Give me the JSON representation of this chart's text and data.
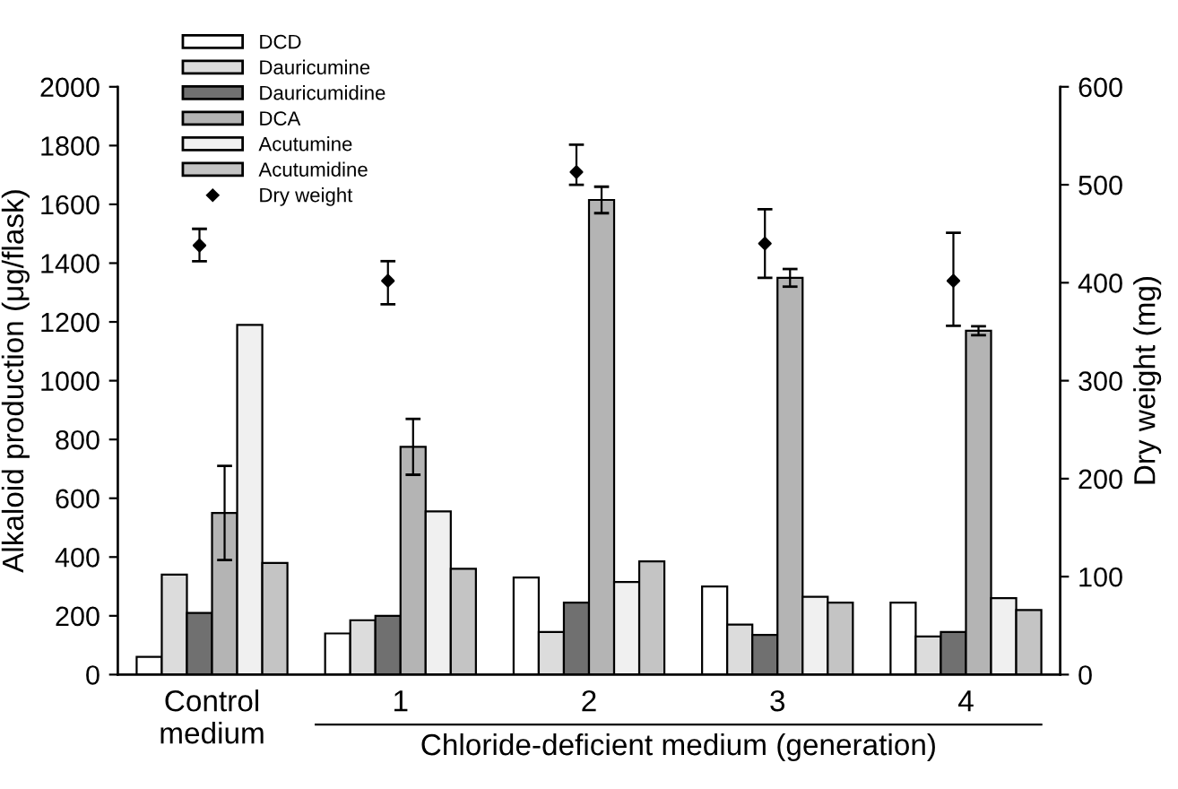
{
  "chart_data": {
    "type": "bar",
    "categories": [
      "Control\nmedium",
      "1",
      "2",
      "3",
      "4"
    ],
    "xlabel": "Chloride-deficient medium (generation)",
    "ylabel": "Alkaloid production (μg/flask)",
    "y2label": "Dry weight (mg)",
    "ylim": [
      0,
      2000
    ],
    "yticks": [
      0,
      200,
      400,
      600,
      800,
      1000,
      1200,
      1400,
      1600,
      1800,
      2000
    ],
    "y2lim": [
      0,
      600
    ],
    "y2ticks": [
      0,
      100,
      200,
      300,
      400,
      500,
      600
    ],
    "legend": "top left",
    "grid": false,
    "series": [
      {
        "name": "DCD",
        "color": "#ffffff",
        "values": [
          60,
          140,
          330,
          300,
          245
        ]
      },
      {
        "name": "Dauricumine",
        "color": "#dcdcdc",
        "values": [
          340,
          185,
          145,
          170,
          130
        ]
      },
      {
        "name": "Dauricumidine",
        "color": "#707070",
        "values": [
          210,
          200,
          245,
          135,
          145
        ]
      },
      {
        "name": "DCA",
        "color": "#b4b4b4",
        "values": [
          550,
          775,
          1615,
          1350,
          1170
        ],
        "errors": [
          160,
          95,
          45,
          30,
          15
        ]
      },
      {
        "name": "Acutumine",
        "color": "#f0f0f0",
        "values": [
          1190,
          555,
          315,
          265,
          260
        ]
      },
      {
        "name": "Acutumidine",
        "color": "#c4c4c4",
        "values": [
          380,
          360,
          385,
          245,
          220
        ]
      },
      {
        "name": "Dry weight",
        "type": "scatter",
        "axis": "y2",
        "color": "#000000",
        "marker": "diamond",
        "values": [
          438,
          402,
          513,
          440,
          402
        ],
        "errors": [
          [
            422,
            455
          ],
          [
            378,
            422
          ],
          [
            500,
            541
          ],
          [
            405,
            475
          ],
          [
            356,
            451
          ]
        ]
      }
    ]
  }
}
